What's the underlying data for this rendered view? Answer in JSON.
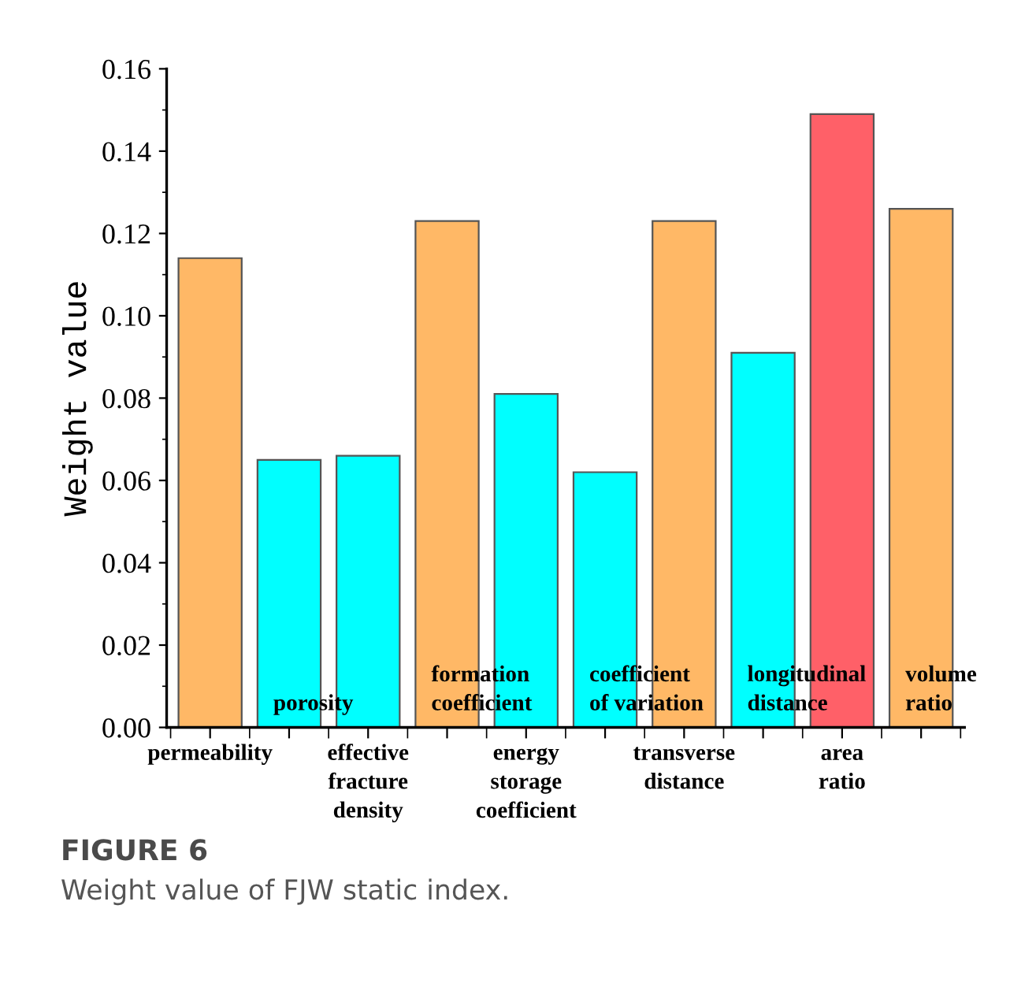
{
  "chart_data": {
    "type": "bar",
    "categories": [
      "permeability",
      "porosity",
      "effective\nfracture\ndensity",
      "formation\ncoefficient",
      "energy\nstorage\ncoefficient",
      "coefficient\nof variation",
      "transverse\ndistance",
      "longitudinal\ndistance",
      "area\nratio",
      "volume\nratio"
    ],
    "values": [
      0.114,
      0.065,
      0.066,
      0.123,
      0.081,
      0.062,
      0.123,
      0.091,
      0.149,
      0.126
    ],
    "colors": [
      "#ffb866",
      "#00ffff",
      "#00ffff",
      "#ffb866",
      "#00ffff",
      "#00ffff",
      "#ffb866",
      "#00ffff",
      "#ff6068",
      "#ffb866"
    ],
    "ylabel": "Weight value",
    "ylim": [
      0,
      0.16
    ],
    "yticks": [
      {
        "value": 0,
        "label": "0.00"
      },
      {
        "value": 0.02,
        "label": "0.02"
      },
      {
        "value": 0.04,
        "label": "0.04"
      },
      {
        "value": 0.06,
        "label": "0.06"
      },
      {
        "value": 0.08,
        "label": "0.08"
      },
      {
        "value": 0.1,
        "label": "0.10"
      },
      {
        "value": 0.12,
        "label": "0.12"
      },
      {
        "value": 0.14,
        "label": "0.14"
      },
      {
        "value": 0.16,
        "label": "0.16"
      }
    ],
    "grid": false,
    "annotations": [
      "FIGURE 6",
      "Weight value of FJW static index."
    ]
  }
}
